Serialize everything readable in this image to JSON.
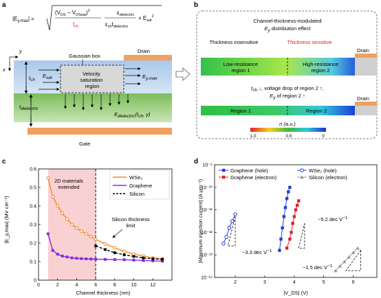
{
  "panels": {
    "a": {
      "label": "a",
      "formula": {
        "lhs": "|E",
        "lhs_sub": "y,max",
        "lhs_end": "| =",
        "num1": "(V",
        "num1_sub": "DS",
        "num2": " − V",
        "num2_sub": "DSsat",
        "num3": ")",
        "num_sup": "2",
        "den": "t",
        "den_sub": "ch",
        "ratio_num": "ε",
        "ratio_num_sub": "dielectric",
        "ratio_den1": "ε",
        "ratio_den1_sub": "ch",
        "ratio_den2": "t",
        "ratio_den2_sub": "dielectric",
        "plus": "+ E",
        "plus_sub": "sat",
        "plus_sup": "2"
      },
      "axis_y": "y",
      "axis_x": "x",
      "gaussian_box": "Gaussian box",
      "drain": "Drain",
      "tch": "t",
      "tch_sub": "ch",
      "esat": "E",
      "esat_sub": "sat",
      "velocity_region": [
        "Velocity",
        "saturation",
        "region"
      ],
      "eymax": "E",
      "eymax_sub": "y,max",
      "tdiel": "t",
      "tdiel_sub": "dielectric",
      "ediel": "E",
      "ediel_sub": "dielectric",
      "ediel_args": "(t",
      "ediel_args_sub": "ch",
      "ediel_args_end": ", y)",
      "gate": "Gate"
    },
    "b": {
      "label": "b",
      "title_line1": "Channel-thickness-modulated",
      "title_line2": "E",
      "title_line2_sub": "y",
      "title_line2_end": " distribution effect",
      "thickness_insensitive": "Thickness insensitive",
      "thickness_sensitive": "Thickness sensitive",
      "drain1": "Drain",
      "region_low_1": "Low-resistance",
      "region_low_2": "region 1",
      "region_high_1": "High-resistance",
      "region_high_2": "region 2",
      "mid_line1_a": "t",
      "mid_line1_sub": "ch",
      "mid_line1_b": " ↓, voltage drop of region 2 ↑,",
      "mid_line2_a": "E",
      "mid_line2_sub": "y",
      "mid_line2_b": " of region 2 ↑",
      "drain2": "Drain",
      "region1": "Region 1",
      "region2": "Region 2",
      "colorbar_label": "n (a.u.)",
      "colorbar_ticks": [
        "1.0",
        "0.5",
        "0"
      ],
      "colors": {
        "red": "#e8202a",
        "green": "#3cba3c",
        "blue": "#2040d0",
        "drain": "#f0a060"
      }
    },
    "c": {
      "label": "c",
      "shade_label_1": "2D materials",
      "shade_label_2": "extended",
      "silicon_limit_1": "Silicon thickness",
      "silicon_limit_2": "limit"
    },
    "d": {
      "label": "d",
      "slope_33": "~3.3 dec V",
      "slope_52": "~5.2 dec V",
      "slope_15": "~1.5 dec V",
      "slope_sup": "−1"
    }
  },
  "chart_data": [
    {
      "type": "line",
      "panel": "c",
      "xlabel": "Channel thickness (nm)",
      "ylabel": "|E_y,max| (MV cm⁻¹)",
      "xlim": [
        0,
        14
      ],
      "ylim": [
        0,
        0.6
      ],
      "xticks": [
        "0",
        "2",
        "4",
        "6",
        "8",
        "10",
        "12"
      ],
      "yticks": [
        "0",
        "0.1",
        "0.2",
        "0.3",
        "0.4",
        "0.5",
        "0.6"
      ],
      "shaded_x_range": [
        1,
        6
      ],
      "legend_position": "top-right",
      "series": [
        {
          "name": "WSe₂",
          "color": "#f08a24",
          "marker": "circle-open",
          "x": [
            1,
            1.5,
            2,
            2.5,
            3,
            3.5,
            4,
            4.5,
            5,
            5.5,
            6,
            7,
            8,
            9,
            10,
            11,
            12,
            13
          ],
          "y": [
            0.55,
            0.45,
            0.4,
            0.36,
            0.33,
            0.3,
            0.28,
            0.265,
            0.25,
            0.235,
            0.22,
            0.195,
            0.175,
            0.155,
            0.14,
            0.13,
            0.12,
            0.115
          ]
        },
        {
          "name": "Graphene",
          "color": "#8a2be2",
          "marker": "square",
          "x": [
            1,
            1.5,
            2,
            2.5,
            3,
            3.5,
            4,
            4.5,
            5,
            5.5,
            6,
            7,
            8,
            9,
            10,
            11,
            12,
            13
          ],
          "y": [
            0.25,
            0.16,
            0.14,
            0.13,
            0.125,
            0.12,
            0.118,
            0.116,
            0.115,
            0.114,
            0.113,
            0.112,
            0.111,
            0.11,
            0.108,
            0.106,
            0.104,
            0.102
          ]
        },
        {
          "name": "Silicon",
          "color": "#000000",
          "marker": "circle",
          "dashed": true,
          "x": [
            6,
            7,
            8,
            9,
            10,
            11,
            12,
            13
          ],
          "y": [
            0.185,
            0.165,
            0.148,
            0.137,
            0.128,
            0.12,
            0.115,
            0.112
          ]
        }
      ]
    },
    {
      "type": "scatter",
      "panel": "d",
      "xlabel": "|V_DS| (V)",
      "ylabel": "|Maximum injection current| (A µm⁻¹)",
      "xlim": [
        1.3,
        6.8
      ],
      "ylim_log10": [
        -14,
        -9
      ],
      "xticks": [
        2,
        3,
        4,
        5,
        6
      ],
      "yticks": [
        "10⁻¹⁴",
        "10⁻¹³",
        "10⁻¹²",
        "10⁻¹¹",
        "10⁻¹⁰",
        "10⁻⁹"
      ],
      "legend_position": "top",
      "series": [
        {
          "name": "Graphene (hole)",
          "color": "#1f3fd8",
          "marker": "square",
          "x": [
            3.5,
            3.55,
            3.6,
            3.65,
            3.7,
            3.75,
            3.8,
            3.85
          ],
          "log10y": [
            -12.8,
            -12.3,
            -11.8,
            -11.3,
            -10.9,
            -10.5,
            -10.2,
            -10.0
          ]
        },
        {
          "name": "WSe₂ (hole)",
          "color": "#1f3fd8",
          "marker": "circle-half",
          "x": [
            1.6,
            1.7,
            1.8,
            1.9,
            2.0
          ],
          "log10y": [
            -12.5,
            -12.2,
            -11.8,
            -11.5,
            -11.2
          ]
        },
        {
          "name": "Graphene (electron)",
          "color": "#e02030",
          "marker": "square",
          "x": [
            3.75,
            3.85,
            3.9,
            3.95,
            4.0,
            4.05,
            4.1,
            4.15
          ],
          "log10y": [
            -12.7,
            -12.3,
            -12.0,
            -11.6,
            -11.3,
            -11.0,
            -10.8,
            -10.6
          ]
        },
        {
          "name": "Silicon (electron)",
          "color": "#999999",
          "marker": "triangle",
          "x": [
            5.4,
            5.55,
            5.7,
            5.85,
            6.0,
            6.15
          ],
          "log10y": [
            -13.7,
            -13.5,
            -13.3,
            -13.1,
            -12.9,
            -12.7
          ]
        }
      ]
    }
  ]
}
